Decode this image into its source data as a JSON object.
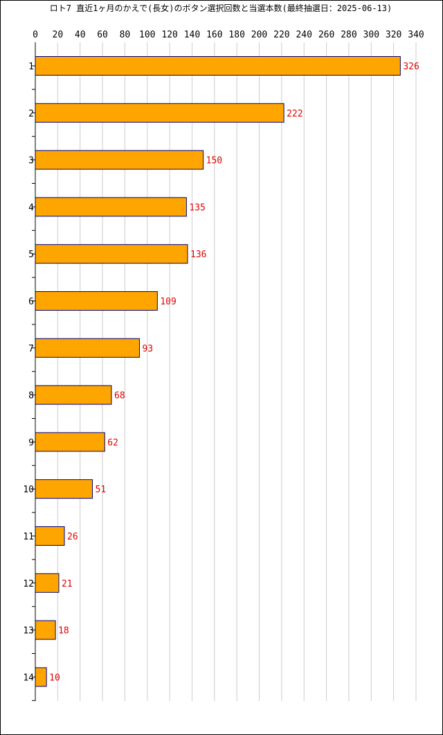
{
  "chart_data": {
    "type": "bar",
    "orientation": "horizontal",
    "title": "ロト7 直近1ヶ月のかえで(長女)のボタン選択回数と当選本数(最終抽選日：2025-06-13)",
    "categories": [
      "1",
      "2",
      "3",
      "4",
      "5",
      "6",
      "7",
      "8",
      "9",
      "10",
      "11",
      "12",
      "13",
      "14"
    ],
    "values": [
      326,
      222,
      150,
      135,
      136,
      109,
      93,
      68,
      62,
      51,
      26,
      21,
      18,
      10
    ],
    "xlim": [
      0,
      340
    ],
    "xticks": [
      0,
      20,
      40,
      60,
      80,
      100,
      120,
      140,
      160,
      180,
      200,
      220,
      240,
      260,
      280,
      300,
      320,
      340
    ],
    "xtick_position": "top",
    "grid": true,
    "bar_color": "#FFA500",
    "bar_edge_color": "#000080",
    "label_color": "#E00000",
    "xlabel": "",
    "ylabel": ""
  }
}
